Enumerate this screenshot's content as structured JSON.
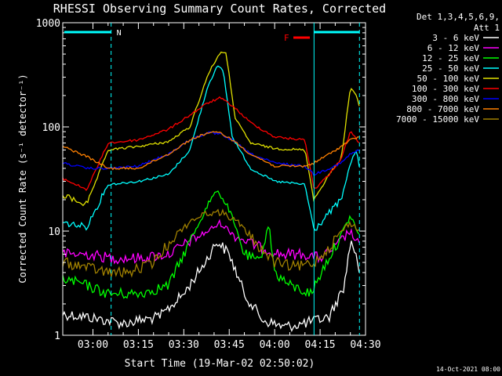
{
  "chart_data": {
    "type": "line",
    "title": "RHESSI Observing Summary Count Rates, Corrected",
    "xlabel": "Start Time (19-Mar-02 02:50:02)",
    "ylabel": "Corrected Count Rate (s⁻¹ detector⁻¹)",
    "yscale": "log",
    "ylim": [
      1,
      1000
    ],
    "xlim": [
      "02:50:02",
      "04:30:00"
    ],
    "x_ticks": [
      "03:00",
      "03:15",
      "03:30",
      "03:45",
      "04:00",
      "04:15",
      "04:30"
    ],
    "y_ticks": [
      "1",
      "10",
      "100",
      "1000"
    ],
    "legend_header": [
      "Det 1,3,4,5,6,9,",
      "Att 1"
    ],
    "legend_position": "right",
    "flag_label": "F",
    "night_flag_label": "N",
    "footer_date": "14-Oct-2021 08:00",
    "series": [
      {
        "name": "3 - 6 keV",
        "color": "#ffffff",
        "points": [
          [
            "02:50",
            1.6
          ],
          [
            "02:58",
            1.5
          ],
          [
            "03:10",
            1.3
          ],
          [
            "03:22",
            1.5
          ],
          [
            "03:30",
            2.5
          ],
          [
            "03:37",
            5
          ],
          [
            "03:41",
            8
          ],
          [
            "03:45",
            6
          ],
          [
            "03:50",
            2.5
          ],
          [
            "03:56",
            1.4
          ],
          [
            "04:03",
            1.2
          ],
          [
            "04:10",
            1.3
          ],
          [
            "04:18",
            1.5
          ],
          [
            "04:23",
            3
          ],
          [
            "04:25",
            8
          ],
          [
            "04:27",
            6
          ],
          [
            "04:28",
            4
          ]
        ]
      },
      {
        "name": "6 - 12 keV",
        "color": "#ff00ff",
        "points": [
          [
            "02:50",
            6
          ],
          [
            "02:58",
            6
          ],
          [
            "03:06",
            5.5
          ],
          [
            "03:15",
            5.5
          ],
          [
            "03:25",
            6
          ],
          [
            "03:32",
            8
          ],
          [
            "03:38",
            10
          ],
          [
            "03:42",
            12
          ],
          [
            "03:47",
            9
          ],
          [
            "03:55",
            7
          ],
          [
            "04:02",
            6
          ],
          [
            "04:10",
            6
          ],
          [
            "04:15",
            5.5
          ],
          [
            "04:20",
            7
          ],
          [
            "04:25",
            10
          ],
          [
            "04:28",
            7
          ]
        ]
      },
      {
        "name": "12 - 25 keV",
        "color": "#00ff00",
        "points": [
          [
            "02:50",
            3.5
          ],
          [
            "02:58",
            3
          ],
          [
            "03:05",
            2.5
          ],
          [
            "03:15",
            2.5
          ],
          [
            "03:25",
            3
          ],
          [
            "03:32",
            8
          ],
          [
            "03:38",
            18
          ],
          [
            "03:41",
            25
          ],
          [
            "03:45",
            16
          ],
          [
            "03:50",
            6
          ],
          [
            "03:55",
            5
          ],
          [
            "03:58",
            12
          ],
          [
            "04:00",
            4
          ],
          [
            "04:05",
            3
          ],
          [
            "04:12",
            2.5
          ],
          [
            "04:17",
            5
          ],
          [
            "04:21",
            8
          ],
          [
            "04:25",
            14
          ],
          [
            "04:28",
            9
          ]
        ]
      },
      {
        "name": "25 - 50 keV",
        "color": "#00ffff",
        "points": [
          [
            "02:50",
            12
          ],
          [
            "02:58",
            11
          ],
          [
            "03:05",
            28
          ],
          [
            "03:15",
            30
          ],
          [
            "03:25",
            35
          ],
          [
            "03:32",
            60
          ],
          [
            "03:38",
            250
          ],
          [
            "03:41",
            380
          ],
          [
            "03:43",
            350
          ],
          [
            "03:46",
            80
          ],
          [
            "03:52",
            40
          ],
          [
            "04:00",
            30
          ],
          [
            "04:10",
            28
          ],
          [
            "04:13",
            10
          ],
          [
            "04:18",
            15
          ],
          [
            "04:22",
            20
          ],
          [
            "04:25",
            45
          ],
          [
            "04:27",
            60
          ],
          [
            "04:28",
            40
          ]
        ]
      },
      {
        "name": "50 - 100 keV",
        "color": "#e0e000",
        "points": [
          [
            "02:50",
            22
          ],
          [
            "02:58",
            18
          ],
          [
            "03:05",
            60
          ],
          [
            "03:15",
            65
          ],
          [
            "03:25",
            72
          ],
          [
            "03:32",
            100
          ],
          [
            "03:38",
            320
          ],
          [
            "03:42",
            520
          ],
          [
            "03:44",
            500
          ],
          [
            "03:47",
            120
          ],
          [
            "03:52",
            70
          ],
          [
            "04:00",
            62
          ],
          [
            "04:10",
            60
          ],
          [
            "04:13",
            20
          ],
          [
            "04:18",
            35
          ],
          [
            "04:22",
            50
          ],
          [
            "04:25",
            240
          ],
          [
            "04:27",
            200
          ],
          [
            "04:28",
            150
          ]
        ]
      },
      {
        "name": "100 - 300 keV",
        "color": "#ff0000",
        "points": [
          [
            "02:50",
            32
          ],
          [
            "02:58",
            25
          ],
          [
            "03:05",
            70
          ],
          [
            "03:15",
            75
          ],
          [
            "03:25",
            95
          ],
          [
            "03:32",
            130
          ],
          [
            "03:38",
            170
          ],
          [
            "03:42",
            190
          ],
          [
            "03:46",
            160
          ],
          [
            "03:52",
            110
          ],
          [
            "04:00",
            80
          ],
          [
            "04:10",
            75
          ],
          [
            "04:13",
            25
          ],
          [
            "04:18",
            35
          ],
          [
            "04:22",
            50
          ],
          [
            "04:25",
            90
          ],
          [
            "04:28",
            70
          ]
        ]
      },
      {
        "name": "300 - 800 keV",
        "color": "#0000ff",
        "points": [
          [
            "02:50",
            45
          ],
          [
            "02:58",
            40
          ],
          [
            "03:05",
            40
          ],
          [
            "03:15",
            42
          ],
          [
            "03:25",
            55
          ],
          [
            "03:32",
            75
          ],
          [
            "03:38",
            88
          ],
          [
            "03:42",
            85
          ],
          [
            "03:46",
            75
          ],
          [
            "03:52",
            55
          ],
          [
            "04:00",
            45
          ],
          [
            "04:10",
            42
          ],
          [
            "04:13",
            35
          ],
          [
            "04:18",
            40
          ],
          [
            "04:22",
            45
          ],
          [
            "04:25",
            55
          ],
          [
            "04:28",
            60
          ]
        ]
      },
      {
        "name": "800 - 7000 keV",
        "color": "#ff8000",
        "points": [
          [
            "02:50",
            65
          ],
          [
            "02:58",
            52
          ],
          [
            "03:05",
            40
          ],
          [
            "03:15",
            40
          ],
          [
            "03:25",
            55
          ],
          [
            "03:32",
            75
          ],
          [
            "03:38",
            88
          ],
          [
            "03:42",
            88
          ],
          [
            "03:46",
            75
          ],
          [
            "03:52",
            55
          ],
          [
            "04:00",
            42
          ],
          [
            "04:10",
            42
          ],
          [
            "04:13",
            45
          ],
          [
            "04:18",
            55
          ],
          [
            "04:22",
            65
          ],
          [
            "04:25",
            75
          ],
          [
            "04:28",
            80
          ]
        ]
      },
      {
        "name": "7000 - 15000 keV",
        "color": "#a08000",
        "points": [
          [
            "02:50",
            5
          ],
          [
            "02:58",
            4.5
          ],
          [
            "03:05",
            4
          ],
          [
            "03:12",
            4
          ],
          [
            "03:20",
            5
          ],
          [
            "03:27",
            9
          ],
          [
            "03:33",
            13
          ],
          [
            "03:38",
            15
          ],
          [
            "03:43",
            15
          ],
          [
            "03:48",
            12
          ],
          [
            "03:55",
            7
          ],
          [
            "04:00",
            5
          ],
          [
            "04:07",
            4.5
          ],
          [
            "04:13",
            5
          ],
          [
            "04:18",
            7
          ],
          [
            "04:22",
            10
          ],
          [
            "04:25",
            12
          ],
          [
            "04:28",
            10
          ]
        ]
      }
    ]
  }
}
